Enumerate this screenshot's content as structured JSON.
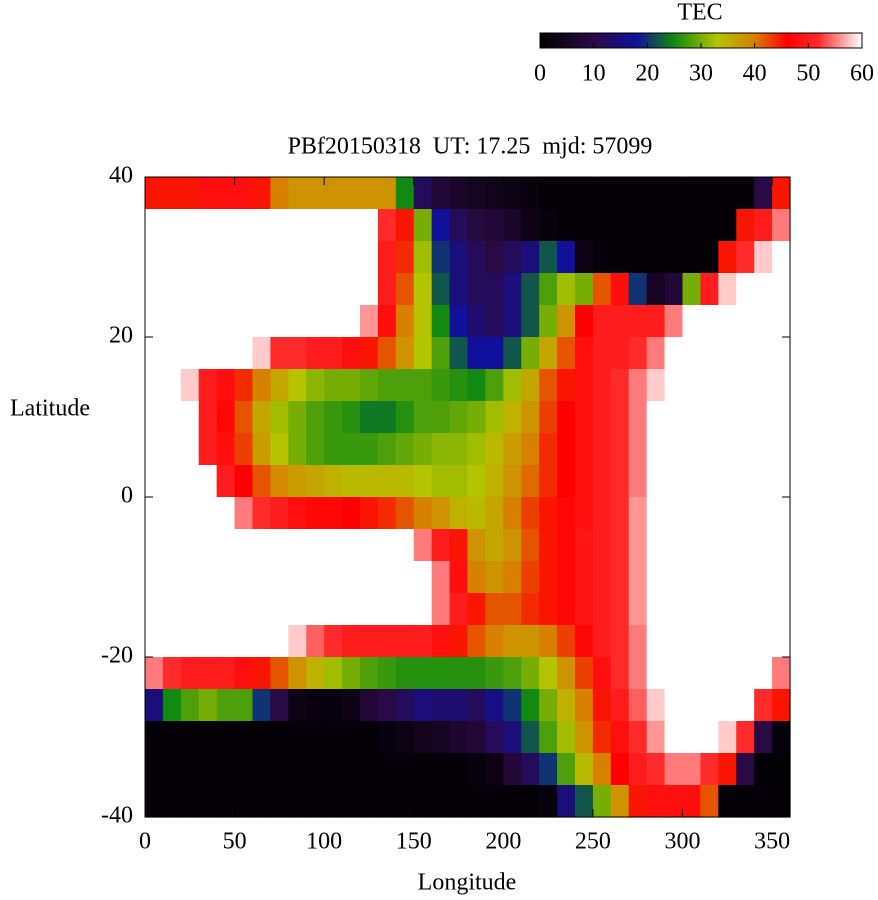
{
  "chart_data": {
    "type": "heatmap",
    "title": "PBf20150318  UT: 17.25  mjd: 57099",
    "x_label": "Longitude",
    "y_label": "Latitude",
    "colorbar_label": "TEC",
    "xlim": [
      0,
      360
    ],
    "ylim": [
      -40,
      40
    ],
    "xticks": [
      0,
      50,
      100,
      150,
      200,
      250,
      300,
      350
    ],
    "yticks": [
      -40,
      -20,
      0,
      20,
      40
    ],
    "clim": [
      0,
      60
    ],
    "cticks": [
      0,
      10,
      20,
      30,
      40,
      50,
      60
    ],
    "colorscale": [
      [
        0,
        "#000000"
      ],
      [
        10,
        "#2a0a44"
      ],
      [
        18,
        "#10109a"
      ],
      [
        25,
        "#108a10"
      ],
      [
        33,
        "#b4c400"
      ],
      [
        40,
        "#d88000"
      ],
      [
        46,
        "#ff0000"
      ],
      [
        52,
        "#ff2a2a"
      ],
      [
        60,
        "#ffffff"
      ]
    ],
    "x": [
      5,
      15,
      25,
      35,
      45,
      55,
      65,
      75,
      85,
      95,
      105,
      115,
      125,
      135,
      145,
      155,
      165,
      175,
      185,
      195,
      205,
      215,
      225,
      235,
      245,
      255,
      265,
      275,
      285,
      295,
      305,
      315,
      325,
      335,
      345,
      355
    ],
    "y": [
      38,
      34,
      30,
      26,
      22,
      18,
      14,
      10,
      6,
      2,
      -2,
      -6,
      -10,
      -14,
      -18,
      -22,
      -26,
      -30,
      -34,
      -38
    ],
    "z": [
      [
        45,
        45,
        45,
        48,
        48,
        48,
        45,
        40,
        38,
        38,
        38,
        38,
        38,
        38,
        25,
        12,
        8,
        6,
        5,
        4,
        3,
        2,
        1,
        1,
        1,
        1,
        1,
        1,
        1,
        1,
        1,
        1,
        1,
        1,
        10,
        45
      ],
      [
        60,
        60,
        60,
        60,
        60,
        60,
        60,
        60,
        60,
        60,
        60,
        60,
        60,
        52,
        45,
        30,
        18,
        12,
        9,
        8,
        6,
        3,
        2,
        1,
        1,
        1,
        1,
        1,
        1,
        1,
        1,
        1,
        1,
        45,
        50,
        55
      ],
      [
        60,
        60,
        60,
        60,
        60,
        60,
        60,
        60,
        60,
        60,
        60,
        60,
        60,
        50,
        44,
        32,
        20,
        15,
        12,
        10,
        12,
        15,
        22,
        18,
        3,
        1,
        1,
        1,
        1,
        1,
        1,
        1,
        45,
        52,
        58,
        60
      ],
      [
        60,
        60,
        60,
        60,
        60,
        60,
        60,
        60,
        60,
        60,
        60,
        60,
        60,
        50,
        42,
        33,
        22,
        15,
        12,
        12,
        15,
        22,
        28,
        32,
        30,
        42,
        48,
        20,
        5,
        8,
        30,
        50,
        58,
        60,
        60,
        60
      ],
      [
        60,
        60,
        60,
        60,
        60,
        60,
        60,
        60,
        60,
        60,
        60,
        60,
        56,
        48,
        40,
        33,
        25,
        18,
        14,
        12,
        15,
        22,
        30,
        38,
        46,
        50,
        50,
        50,
        50,
        55,
        60,
        60,
        60,
        60,
        60,
        60
      ],
      [
        60,
        60,
        60,
        60,
        60,
        60,
        58,
        52,
        52,
        50,
        50,
        48,
        45,
        42,
        38,
        33,
        28,
        22,
        18,
        18,
        22,
        30,
        36,
        42,
        48,
        50,
        50,
        52,
        55,
        60,
        60,
        60,
        60,
        60,
        60,
        60
      ],
      [
        60,
        60,
        58,
        50,
        48,
        44,
        40,
        36,
        33,
        31,
        30,
        30,
        29,
        28,
        28,
        28,
        27,
        26,
        25,
        28,
        32,
        36,
        42,
        45,
        48,
        50,
        52,
        55,
        58,
        60,
        60,
        60,
        60,
        60,
        60,
        60
      ],
      [
        60,
        60,
        60,
        50,
        47,
        42,
        36,
        32,
        30,
        28,
        27,
        26,
        24,
        24,
        26,
        28,
        28,
        29,
        30,
        32,
        35,
        38,
        43,
        46,
        48,
        50,
        52,
        55,
        60,
        60,
        60,
        60,
        60,
        60,
        60,
        60
      ],
      [
        60,
        60,
        60,
        50,
        48,
        43,
        37,
        33,
        30,
        28,
        27,
        27,
        27,
        28,
        29,
        30,
        31,
        31,
        32,
        34,
        37,
        40,
        44,
        46,
        48,
        50,
        52,
        55,
        60,
        60,
        60,
        60,
        60,
        60,
        60,
        60
      ],
      [
        60,
        60,
        60,
        60,
        50,
        46,
        42,
        39,
        37,
        36,
        35,
        34,
        34,
        34,
        34,
        33,
        32,
        32,
        33,
        35,
        38,
        41,
        44,
        46,
        48,
        50,
        52,
        55,
        60,
        60,
        60,
        60,
        60,
        60,
        60,
        60
      ],
      [
        60,
        60,
        60,
        60,
        60,
        55,
        52,
        50,
        48,
        47,
        47,
        46,
        45,
        44,
        42,
        40,
        38,
        35,
        34,
        36,
        40,
        43,
        45,
        47,
        48,
        50,
        52,
        56,
        60,
        60,
        60,
        60,
        60,
        60,
        60,
        60
      ],
      [
        60,
        60,
        60,
        60,
        60,
        60,
        60,
        60,
        60,
        60,
        60,
        60,
        60,
        60,
        60,
        55,
        50,
        45,
        38,
        36,
        38,
        42,
        45,
        47,
        49,
        50,
        52,
        56,
        60,
        60,
        60,
        60,
        60,
        60,
        60,
        60
      ],
      [
        60,
        60,
        60,
        60,
        60,
        60,
        60,
        60,
        60,
        60,
        60,
        60,
        60,
        60,
        60,
        60,
        55,
        48,
        40,
        38,
        40,
        43,
        45,
        47,
        49,
        50,
        52,
        56,
        60,
        60,
        60,
        60,
        60,
        60,
        60,
        60
      ],
      [
        60,
        60,
        60,
        60,
        60,
        60,
        60,
        60,
        60,
        60,
        60,
        60,
        60,
        60,
        60,
        60,
        55,
        50,
        45,
        42,
        42,
        44,
        45,
        47,
        49,
        50,
        52,
        56,
        60,
        60,
        60,
        60,
        60,
        60,
        60,
        60
      ],
      [
        60,
        60,
        60,
        60,
        60,
        60,
        60,
        60,
        58,
        54,
        52,
        50,
        50,
        50,
        50,
        50,
        48,
        45,
        42,
        40,
        38,
        38,
        40,
        43,
        47,
        50,
        52,
        55,
        60,
        60,
        60,
        60,
        60,
        60,
        60,
        60
      ],
      [
        55,
        52,
        50,
        50,
        50,
        48,
        45,
        42,
        38,
        35,
        32,
        30,
        28,
        27,
        26,
        26,
        26,
        26,
        26,
        27,
        28,
        30,
        33,
        38,
        43,
        48,
        52,
        55,
        60,
        60,
        60,
        60,
        60,
        60,
        60,
        55
      ],
      [
        15,
        25,
        28,
        30,
        28,
        28,
        20,
        10,
        3,
        2,
        2,
        3,
        8,
        10,
        12,
        15,
        14,
        14,
        12,
        16,
        20,
        25,
        30,
        35,
        40,
        45,
        50,
        54,
        58,
        60,
        60,
        60,
        60,
        60,
        52,
        45
      ],
      [
        1,
        1,
        1,
        1,
        1,
        1,
        1,
        1,
        1,
        1,
        1,
        1,
        1,
        2,
        3,
        4,
        5,
        7,
        8,
        12,
        15,
        22,
        28,
        32,
        38,
        44,
        48,
        52,
        56,
        60,
        60,
        60,
        58,
        52,
        10,
        2
      ],
      [
        1,
        1,
        1,
        1,
        1,
        1,
        1,
        1,
        1,
        1,
        1,
        1,
        1,
        1,
        1,
        1,
        1,
        1,
        2,
        3,
        8,
        12,
        20,
        28,
        34,
        40,
        46,
        50,
        52,
        55,
        55,
        52,
        45,
        10,
        1,
        1
      ],
      [
        1,
        1,
        1,
        1,
        1,
        1,
        1,
        1,
        1,
        1,
        1,
        1,
        1,
        1,
        1,
        1,
        1,
        1,
        1,
        1,
        1,
        1,
        2,
        15,
        22,
        30,
        38,
        45,
        48,
        48,
        48,
        42,
        1,
        1,
        1,
        1
      ]
    ]
  }
}
